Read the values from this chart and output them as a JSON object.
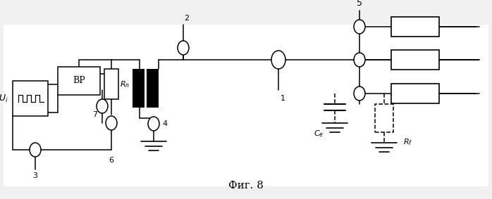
{
  "bg_color": "#f0f0f0",
  "line_color": "#000000",
  "title": "Фиг. 8",
  "title_fontsize": 11,
  "figsize": [
    6.98,
    2.83
  ],
  "dpi": 100
}
